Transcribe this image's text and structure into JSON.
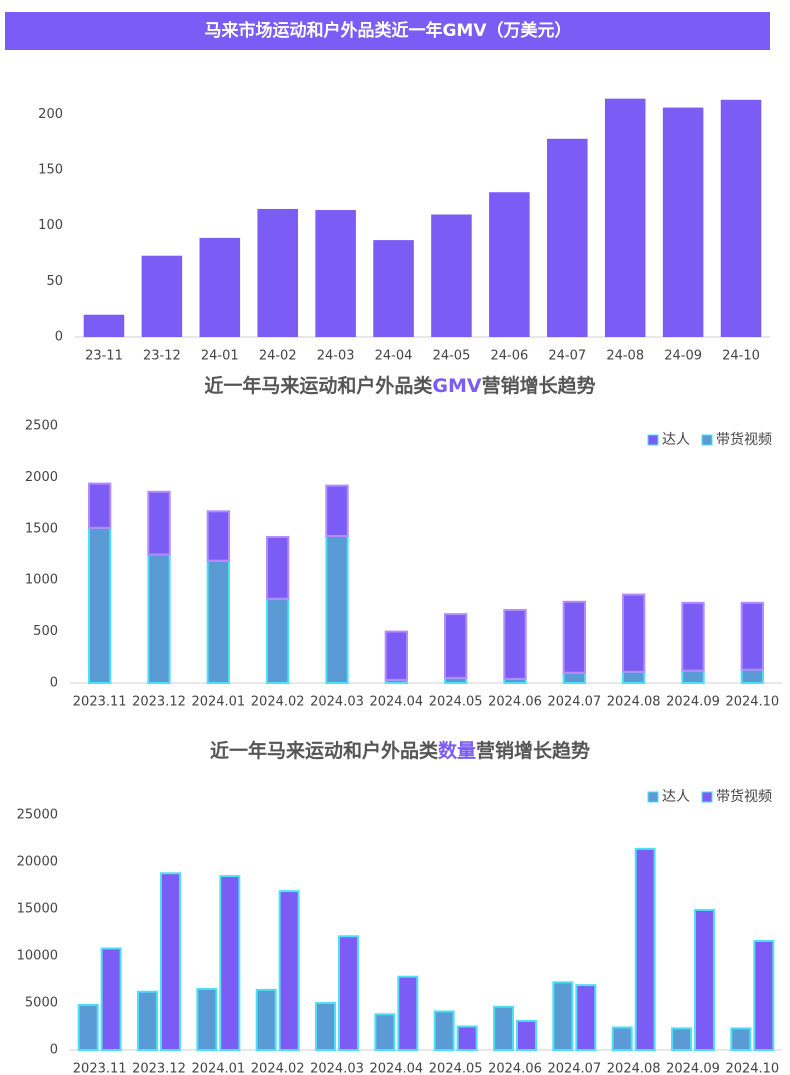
{
  "chart_data": [
    {
      "type": "bar",
      "title": "马来市场运动和户外品类近一年GMV（万美元）",
      "color": "#7b5cf5",
      "categories": [
        "23-11",
        "23-12",
        "24-01",
        "24-02",
        "24-03",
        "24-04",
        "24-05",
        "24-06",
        "24-07",
        "24-08",
        "24-09",
        "24-10"
      ],
      "values": [
        20,
        73,
        89,
        115,
        114,
        87,
        110,
        130,
        178,
        214,
        206,
        213
      ],
      "ylim": [
        0,
        220
      ],
      "yticks": [
        0,
        50,
        100,
        150,
        200
      ],
      "grid": false
    },
    {
      "type": "stacked_bar",
      "title": [
        "近一年马来运动和户外品类",
        "GMV",
        "营销增长趋势"
      ],
      "categories": [
        "2023.11",
        "2023.12",
        "2024.01",
        "2024.02",
        "2024.03",
        "2024.04",
        "2024.05",
        "2024.06",
        "2024.07",
        "2024.08",
        "2024.09",
        "2024.10"
      ],
      "series": [
        {
          "name": "达人",
          "color": "#7b5cf5",
          "values": [
            430,
            610,
            480,
            600,
            490,
            470,
            620,
            670,
            690,
            750,
            660,
            650
          ]
        },
        {
          "name": "带货视频",
          "color": "#5b9bd5",
          "values": [
            1510,
            1250,
            1190,
            820,
            1430,
            30,
            50,
            40,
            100,
            110,
            120,
            130
          ]
        }
      ],
      "ylim": [
        0,
        2500
      ],
      "yticks": [
        0,
        500,
        1000,
        1500,
        2000,
        2500
      ],
      "legend": "top-right",
      "grid": false
    },
    {
      "type": "grouped_bar",
      "title": [
        "近一年马来运动和户外品类",
        "数量",
        "营销增长趋势"
      ],
      "categories": [
        "2023.11",
        "2023.12",
        "2024.01",
        "2024.02",
        "2024.03",
        "2024.04",
        "2024.05",
        "2024.06",
        "2024.07",
        "2024.08",
        "2024.09",
        "2024.10"
      ],
      "series": [
        {
          "name": "达人",
          "color": "#5b9bd5",
          "values": [
            4800,
            6200,
            6500,
            6400,
            5000,
            3800,
            4100,
            4600,
            7200,
            2400,
            2300,
            2300
          ]
        },
        {
          "name": "带货视频",
          "color": "#7b5cf5",
          "values": [
            10800,
            18800,
            18500,
            16900,
            12100,
            7800,
            2500,
            3100,
            6900,
            21400,
            14900,
            11600
          ]
        }
      ],
      "ylim": [
        0,
        25000
      ],
      "yticks": [
        0,
        5000,
        10000,
        15000,
        20000,
        25000
      ],
      "legend": "top-right",
      "grid": false
    }
  ]
}
